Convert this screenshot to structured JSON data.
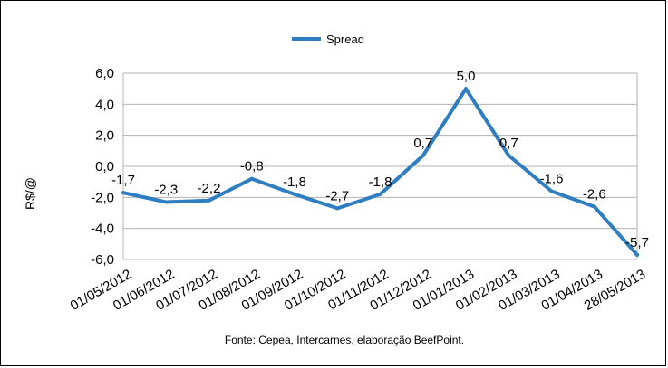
{
  "chart_data": {
    "type": "line",
    "categories": [
      "01/05/2012",
      "01/06/2012",
      "01/07/2012",
      "01/08/2012",
      "01/09/2012",
      "01/10/2012",
      "01/11/2012",
      "01/12/2012",
      "01/01/2013",
      "01/02/2013",
      "01/03/2013",
      "01/04/2013",
      "28/05/2013"
    ],
    "series": [
      {
        "name": "Spread",
        "values": [
          -1.7,
          -2.3,
          -2.2,
          -0.8,
          -1.8,
          -2.7,
          -1.8,
          0.7,
          5.0,
          0.7,
          -1.6,
          -2.6,
          -5.7
        ],
        "color": "#2f7ec2"
      }
    ],
    "data_labels": [
      "-1,7",
      "-2,3",
      "-2,2",
      "-0,8",
      "-1,8",
      "-2,7",
      "-1,8",
      "0,7",
      "5,0",
      "0,7",
      "-1,6",
      "-2,6",
      "-5,7"
    ],
    "ylabel": "R$/@",
    "ylim": [
      -6.0,
      6.0
    ],
    "yticks": [
      6.0,
      4.0,
      2.0,
      0.0,
      -2.0,
      -4.0,
      -6.0
    ],
    "ytick_labels": [
      "6,0",
      "4,0",
      "2,0",
      "0,0",
      "-2,0",
      "-4,0",
      "-6,0"
    ],
    "grid": true,
    "legend_position": "top-center",
    "source": "Fonte: Cepea, Intercarnes, elaboração BeefPoint."
  }
}
